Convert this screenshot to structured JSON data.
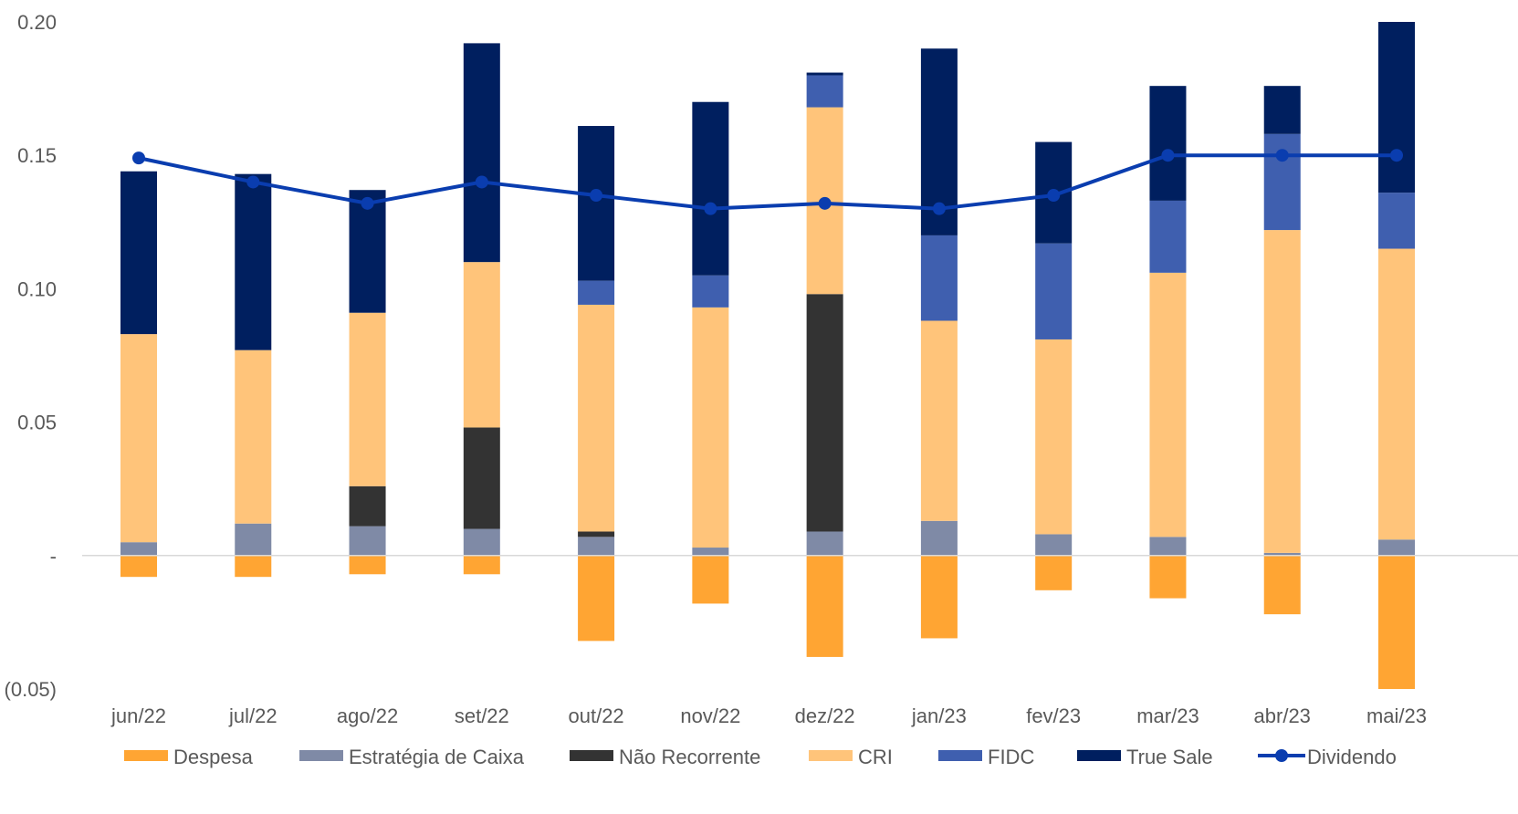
{
  "chart_data": {
    "type": "bar",
    "stacked": true,
    "categories": [
      "jun/22",
      "jul/22",
      "ago/22",
      "set/22",
      "out/22",
      "nov/22",
      "dez/22",
      "jan/23",
      "fev/23",
      "mar/23",
      "abr/23",
      "mai/23"
    ],
    "series": [
      {
        "name": "Despesa",
        "type": "bar",
        "color": "#FFA533",
        "values": [
          -0.008,
          -0.008,
          -0.007,
          -0.007,
          -0.032,
          -0.018,
          -0.038,
          -0.031,
          -0.013,
          -0.016,
          -0.022,
          -0.05
        ]
      },
      {
        "name": "Estratégia de Caixa",
        "type": "bar",
        "color": "#7F8AA6",
        "values": [
          0.005,
          0.012,
          0.011,
          0.01,
          0.007,
          0.003,
          0.009,
          0.013,
          0.008,
          0.007,
          0.001,
          0.006
        ]
      },
      {
        "name": "Não Recorrente",
        "type": "bar",
        "color": "#333333",
        "values": [
          0,
          0,
          0.015,
          0.038,
          0.002,
          0,
          0.089,
          0,
          0,
          0,
          0,
          0
        ]
      },
      {
        "name": "CRI",
        "type": "bar",
        "color": "#FFC47A",
        "values": [
          0.078,
          0.065,
          0.065,
          0.062,
          0.085,
          0.09,
          0.07,
          0.075,
          0.073,
          0.099,
          0.121,
          0.109
        ]
      },
      {
        "name": "FIDC",
        "type": "bar",
        "color": "#3F5FAF",
        "values": [
          0,
          0,
          0,
          0,
          0.009,
          0.012,
          0.012,
          0.032,
          0.036,
          0.027,
          0.036,
          0.021
        ]
      },
      {
        "name": "True Sale",
        "type": "bar",
        "color": "#001F5F",
        "values": [
          0.061,
          0.066,
          0.046,
          0.082,
          0.058,
          0.065,
          0.001,
          0.07,
          0.038,
          0.043,
          0.018,
          0.064
        ]
      },
      {
        "name": "Dividendo",
        "type": "line",
        "color": "#0A3DAF",
        "values": [
          0.149,
          0.14,
          0.132,
          0.14,
          0.135,
          0.13,
          0.132,
          0.13,
          0.135,
          0.15,
          0.15,
          0.15
        ]
      }
    ],
    "y_ticks": [
      {
        "value": 0.2,
        "label": "0.20"
      },
      {
        "value": 0.15,
        "label": "0.15"
      },
      {
        "value": 0.1,
        "label": "0.10"
      },
      {
        "value": 0.05,
        "label": "0.05"
      },
      {
        "value": 0,
        "label": "-"
      },
      {
        "value": -0.05,
        "label": "(0.05)"
      }
    ],
    "ylim": [
      -0.05,
      0.2
    ],
    "grid": false,
    "legend_position": "bottom",
    "title": "",
    "xlabel": "",
    "ylabel": ""
  }
}
